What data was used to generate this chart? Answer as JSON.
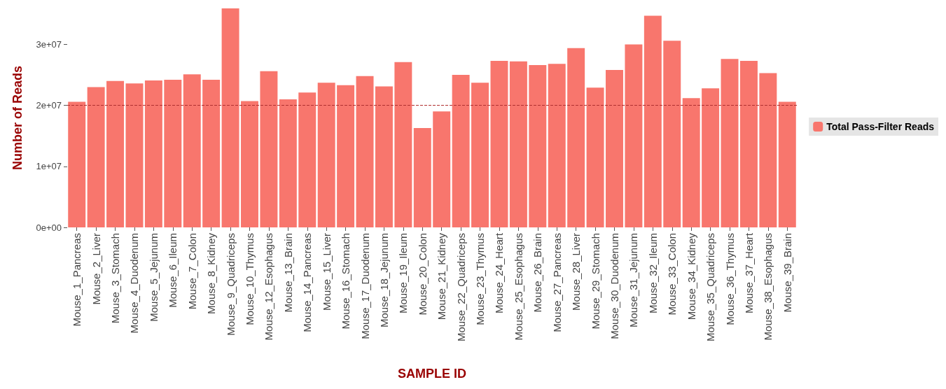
{
  "chart_data": {
    "type": "bar",
    "xlabel": "SAMPLE ID",
    "ylabel": "Number of Reads",
    "categories": [
      "Mouse_1_Pancreas",
      "Mouse_2_Liver",
      "Mouse_3_Stomach",
      "Mouse_4_Duodenum",
      "Mouse_5_Jejunum",
      "Mouse_6_Ileum",
      "Mouse_7_Colon",
      "Mouse_8_Kidney",
      "Mouse_9_Quadriceps",
      "Mouse_10_Thymus",
      "Mouse_12_Esophagus",
      "Mouse_13_Brain",
      "Mouse_14_Pancreas",
      "Mouse_15_Liver",
      "Mouse_16_Stomach",
      "Mouse_17_Duodenum",
      "Mouse_18_Jejunum",
      "Mouse_19_Ileum",
      "Mouse_20_Colon",
      "Mouse_21_Kidney",
      "Mouse_22_Quadriceps",
      "Mouse_23_Thymus",
      "Mouse_24_Heart",
      "Mouse_25_Esophagus",
      "Mouse_26_Brain",
      "Mouse_27_Pancreas",
      "Mouse_28_Liver",
      "Mouse_29_Stomach",
      "Mouse_30_Duodenum",
      "Mouse_31_Jejunum",
      "Mouse_32_Ileum",
      "Mouse_33_Colon",
      "Mouse_34_Kidney",
      "Mouse_35_Quadriceps",
      "Mouse_36_Thymus",
      "Mouse_37_Heart",
      "Mouse_38_Esophagus",
      "Mouse_39_Brain"
    ],
    "series": [
      {
        "name": "Total Pass-Filter Reads",
        "color": "#f8766d",
        "values": [
          20600000,
          23000000,
          24000000,
          23600000,
          24100000,
          24200000,
          25100000,
          24200000,
          35900000,
          20700000,
          25600000,
          21000000,
          22100000,
          23700000,
          23300000,
          24800000,
          23100000,
          27100000,
          16300000,
          19000000,
          25000000,
          23700000,
          27300000,
          27200000,
          26600000,
          26800000,
          29400000,
          22900000,
          25800000,
          30000000,
          34700000,
          30600000,
          21200000,
          22800000,
          27600000,
          27300000,
          25300000,
          20600000
        ]
      }
    ],
    "yticks": [
      {
        "value": 0,
        "label": "0e+00"
      },
      {
        "value": 10000000,
        "label": "1e+07"
      },
      {
        "value": 20000000,
        "label": "2e+07"
      },
      {
        "value": 30000000,
        "label": "3e+07"
      }
    ],
    "ylim": [
      0,
      35900000
    ],
    "ref_lines": [
      {
        "axis": "y",
        "value": 20000000,
        "color": "#b03030",
        "line_style": "dashed"
      }
    ],
    "legend": "right",
    "grid": false
  }
}
